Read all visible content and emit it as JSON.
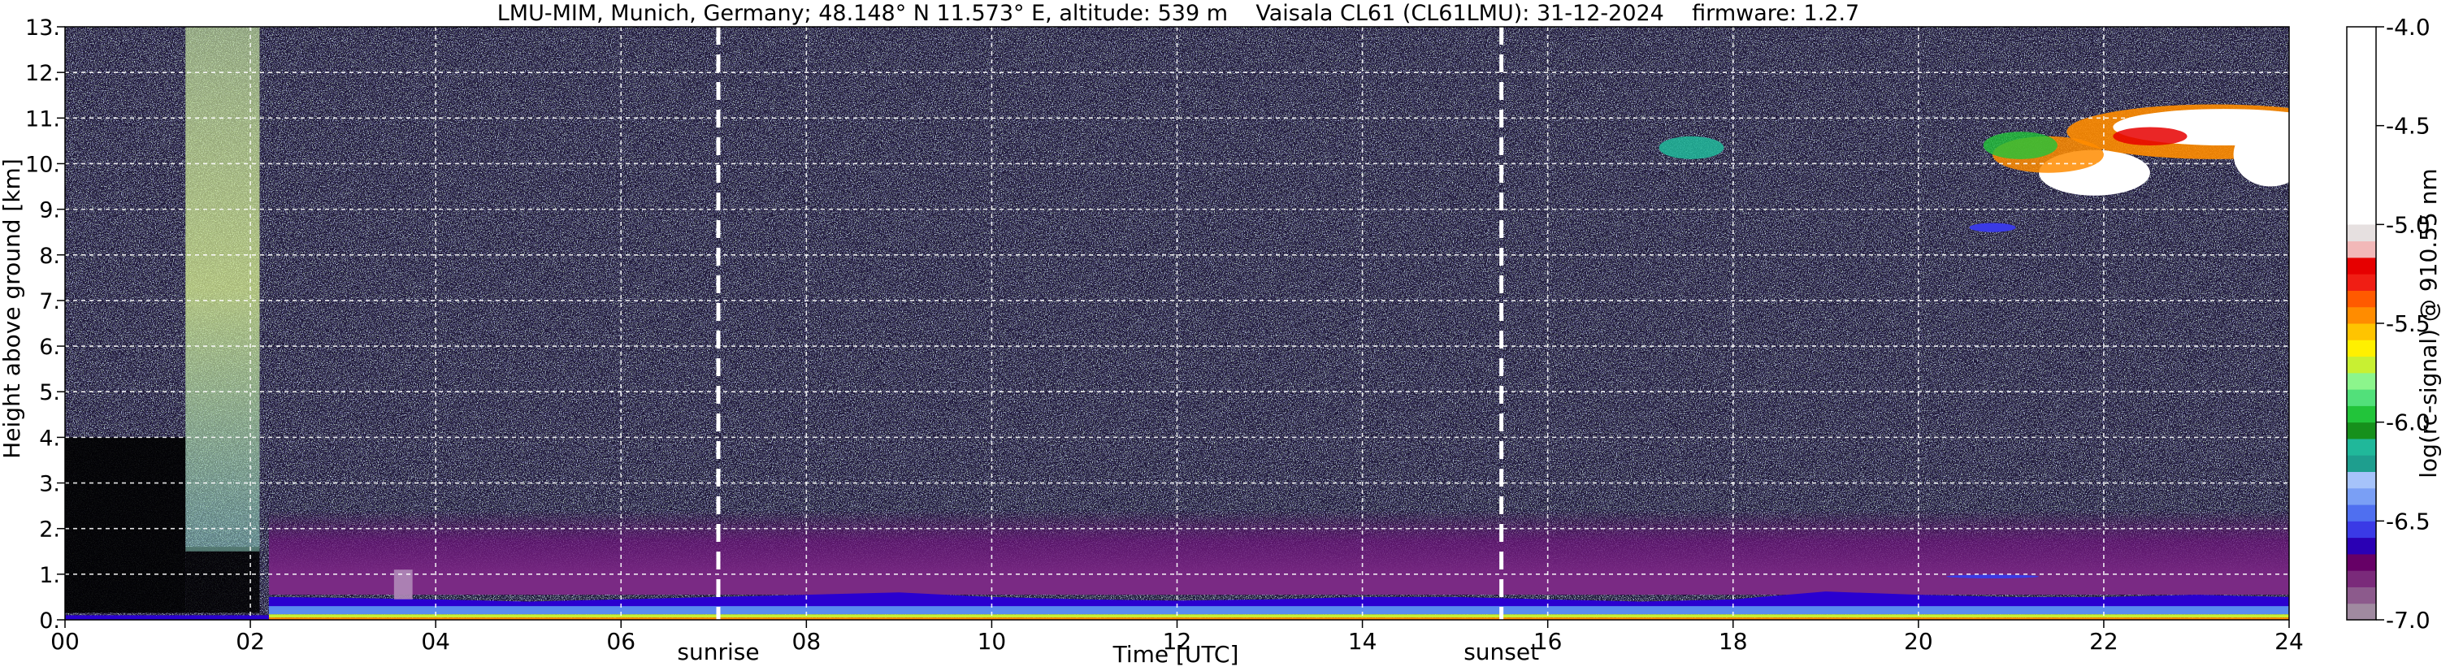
{
  "chart_data": {
    "type": "heatmap",
    "title": "LMU-MIM, Munich, Germany; 48.148° N 11.573° E, altitude: 539 m    Vaisala CL61 (CL61LMU): 31-12-2024    firmware: 1.2.7",
    "xlabel": "Time [UTC]",
    "ylabel": "Height above ground [km]",
    "xlim": [
      0,
      24
    ],
    "ylim": [
      0,
      13
    ],
    "x_tick_labels": [
      "00",
      "02",
      "04",
      "06",
      "08",
      "10",
      "12",
      "14",
      "16",
      "18",
      "20",
      "22",
      "24"
    ],
    "y_tick_labels": [
      "0.",
      "1.",
      "2.",
      "3.",
      "4.",
      "5.",
      "6.",
      "7.",
      "8.",
      "9.",
      "10.",
      "11.",
      "12.",
      "13."
    ],
    "grid": true,
    "annotations": [
      {
        "text": "sunrise",
        "x": 7.05
      },
      {
        "text": "sunset",
        "x": 15.5
      }
    ],
    "colorbar": {
      "label": "log(rc-signal) @ 910.55 nm",
      "range": [
        -7.0,
        -4.0
      ],
      "ticks": [
        -7.0,
        -6.5,
        -6.0,
        -5.5,
        -5.0,
        -4.5,
        -4.0
      ],
      "tick_labels": [
        "-7.0",
        "-6.5",
        "-6.0",
        "-5.5",
        "-5.0",
        "-4.5",
        "-4.0"
      ],
      "colors": [
        "#a08aa0",
        "#8c5a8c",
        "#7a2a7a",
        "#660066",
        "#2a00b4",
        "#3a3ae6",
        "#4f6ff0",
        "#7a9ff5",
        "#a6c3fa",
        "#1e9e8e",
        "#20b89a",
        "#16901c",
        "#22c43a",
        "#52e07a",
        "#8cf58c",
        "#c8f032",
        "#fff000",
        "#ffc400",
        "#ff8c00",
        "#ff5a00",
        "#f01e14",
        "#e60000",
        "#f2b8b8",
        "#e6e0e0",
        "#ffffff"
      ]
    },
    "features": [
      {
        "name": "high noise column",
        "x": [
          1.3,
          2.1
        ],
        "y": [
          1.5,
          13
        ]
      },
      {
        "name": "boundary layer",
        "x": [
          2.2,
          24
        ],
        "y": [
          0,
          0.9
        ]
      },
      {
        "name": "cirrus cloud",
        "x": [
          17.2,
          17.9
        ],
        "y": [
          10.1,
          10.6
        ]
      },
      {
        "name": "cirrus cloud",
        "x": [
          20.9,
          22.2
        ],
        "y": [
          9.4,
          10.6
        ]
      },
      {
        "name": "cirrus cloud",
        "x": [
          22.3,
          24
        ],
        "y": [
          9.7,
          11.0
        ]
      }
    ],
    "sunrise_time": 7.05,
    "sunset_time": 15.5
  }
}
